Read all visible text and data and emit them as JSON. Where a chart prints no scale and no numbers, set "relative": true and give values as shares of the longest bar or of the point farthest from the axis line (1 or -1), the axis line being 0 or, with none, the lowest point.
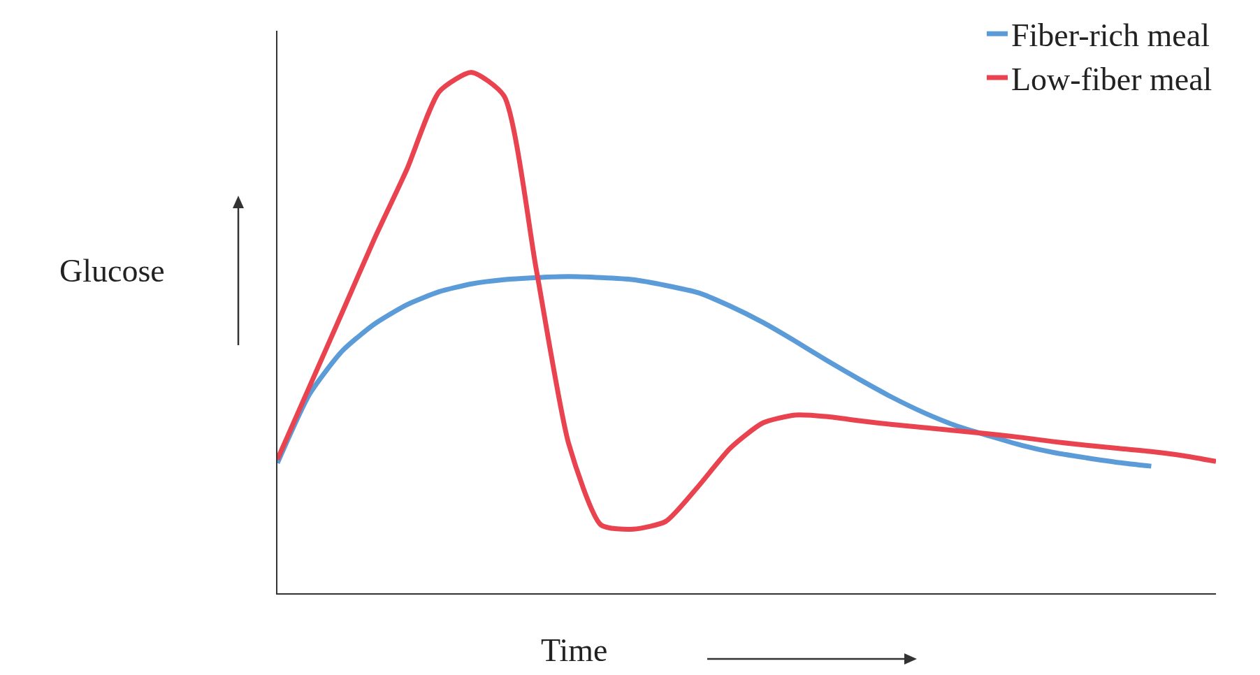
{
  "chart_data": {
    "type": "line",
    "relative": true,
    "xlabel": "Time",
    "ylabel": "Glucose",
    "legend": "top right",
    "categories": [
      null,
      null,
      null,
      null,
      null,
      null,
      null,
      null,
      null,
      null,
      null,
      null,
      null,
      null,
      null,
      null,
      null,
      null,
      null,
      null,
      null,
      null,
      null,
      null,
      null,
      null,
      null,
      null,
      null,
      null
    ],
    "series": [
      {
        "name": "Fiber-rich meal",
        "color": "#5b9bd8",
        "values": [
          0.25,
          0.383,
          0.465,
          0.517,
          0.554,
          0.579,
          0.594,
          0.602,
          0.606,
          0.608,
          0.606,
          0.602,
          0.591,
          0.577,
          0.551,
          0.52,
          0.484,
          0.446,
          0.41,
          0.376,
          0.346,
          0.321,
          0.302,
          0.284,
          0.27,
          0.26,
          0.251,
          0.244,
          null,
          null
        ]
      },
      {
        "name": "Low-fiber meal",
        "color": "#e8434f",
        "values": [
          0.257,
          0.398,
          0.539,
          0.681,
          0.814,
          0.963,
          1.0,
          0.955,
          0.621,
          0.287,
          0.131,
          0.123,
          0.138,
          0.205,
          0.279,
          0.327,
          0.342,
          0.339,
          0.331,
          0.324,
          0.318,
          0.312,
          0.306,
          0.299,
          0.291,
          0.284,
          0.278,
          0.272,
          0.264,
          0.253
        ]
      }
    ]
  }
}
